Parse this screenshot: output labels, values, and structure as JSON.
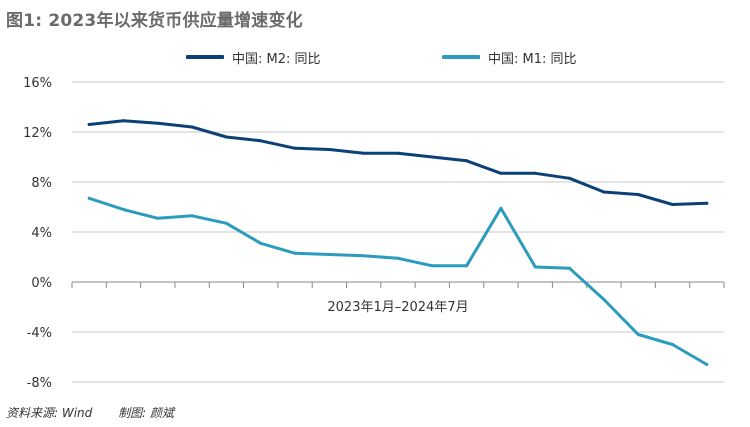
{
  "title": "图1: 2023年以来货币供应量增速变化",
  "source": "资料来源: Wind",
  "author": "制图: 颜斌",
  "colors": {
    "m2": "#0c4177",
    "m1": "#2b9bbe",
    "axis": "#888888",
    "grid": "#c8c8c8",
    "text": "#333333"
  },
  "chart_data": {
    "type": "line",
    "xlabel": "2023年1月–2024年7月",
    "ylim": [
      -8,
      16
    ],
    "yticks": [
      -8,
      -4,
      0,
      4,
      8,
      12,
      16
    ],
    "ytick_labels": [
      "-8%",
      "-4%",
      "0%",
      "4%",
      "8%",
      "12%",
      "16%"
    ],
    "legend_position": "top",
    "grid": true,
    "x": [
      "2023-01",
      "2023-02",
      "2023-03",
      "2023-04",
      "2023-05",
      "2023-06",
      "2023-07",
      "2023-08",
      "2023-09",
      "2023-10",
      "2023-11",
      "2023-12",
      "2024-01",
      "2024-02",
      "2024-03",
      "2024-04",
      "2024-05",
      "2024-06",
      "2024-07"
    ],
    "series": [
      {
        "name": "中国: M2: 同比",
        "color": "#0c4177",
        "values": [
          12.6,
          12.9,
          12.7,
          12.4,
          11.6,
          11.3,
          10.7,
          10.6,
          10.3,
          10.3,
          10.0,
          9.7,
          8.7,
          8.7,
          8.3,
          7.2,
          7.0,
          6.2,
          6.3
        ]
      },
      {
        "name": "中国: M1: 同比",
        "color": "#2b9bbe",
        "values": [
          6.7,
          5.8,
          5.1,
          5.3,
          4.7,
          3.1,
          2.3,
          2.2,
          2.1,
          1.9,
          1.3,
          1.3,
          5.9,
          1.2,
          1.1,
          -1.4,
          -4.2,
          -5.0,
          -6.6
        ]
      }
    ]
  }
}
